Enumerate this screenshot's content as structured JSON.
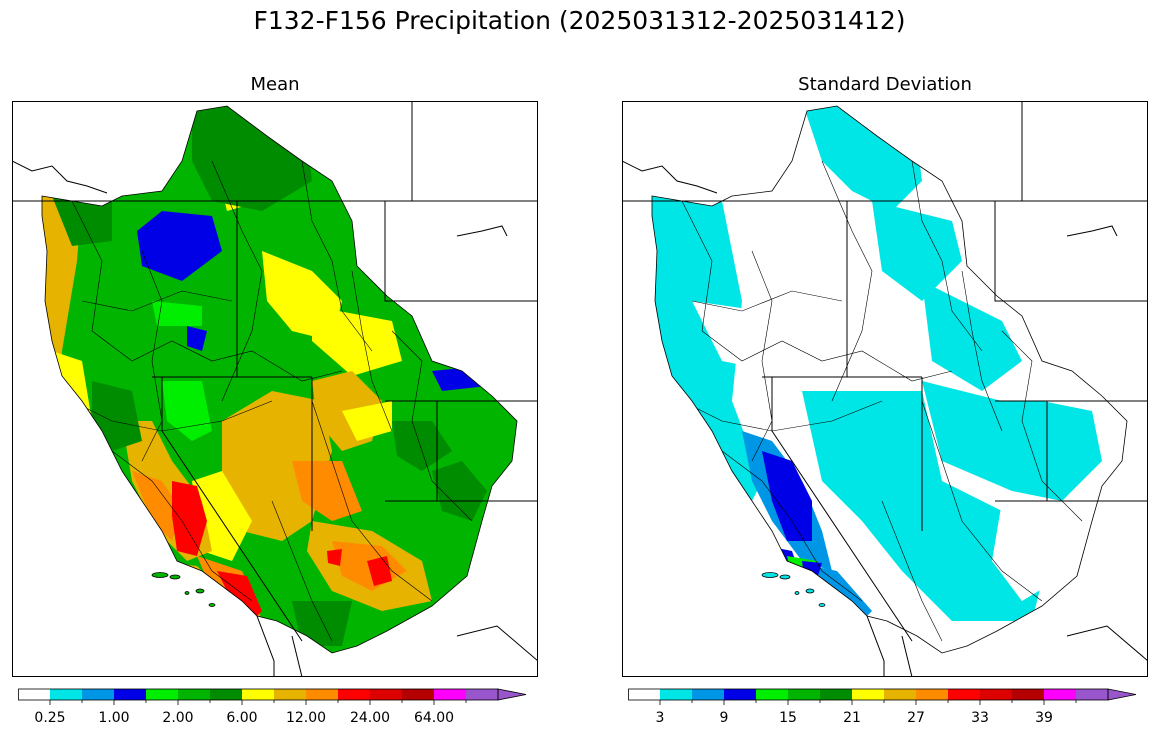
{
  "figure": {
    "title": "F132-F156 Precipitation (2025031312-2025031412)"
  },
  "colors": {
    "scale": [
      "#ffffff",
      "#00e5e5",
      "#0096e6",
      "#0000e6",
      "#00ee00",
      "#00b400",
      "#008c00",
      "#ffff00",
      "#e6b400",
      "#ff8c00",
      "#ff0000",
      "#dc0000",
      "#b40000",
      "#ff00ff",
      "#9955cc"
    ],
    "map_outline": "#000000",
    "ocean": "#ffffff"
  },
  "chart_data": [
    {
      "type": "heatmap",
      "title": "Mean",
      "description_kind": "basin choropleth map",
      "colorbar": {
        "tick_labels": [
          "0.25",
          "1.00",
          "2.00",
          "6.00",
          "12.00",
          "24.00",
          "64.00"
        ],
        "n_colors": 15,
        "extend": "max"
      },
      "regions": [
        {
          "area": "Pacific Northwest coast",
          "class": "yellow/gold"
        },
        {
          "area": "Northern Idaho / western Montana basin",
          "class": "blue"
        },
        {
          "area": "Central Oregon / Idaho",
          "class": "green"
        },
        {
          "area": "Southern Sierra Nevada",
          "class": "red"
        },
        {
          "area": "Southern California coast",
          "class": "red"
        },
        {
          "area": "Great Basin / Utah",
          "class": "yellow/gold"
        },
        {
          "area": "Arizona / New Mexico mountains",
          "class": "orange/red"
        },
        {
          "area": "Colorado Front Range",
          "class": "green"
        },
        {
          "area": "Northeast Wyoming basin",
          "class": "blue"
        }
      ]
    },
    {
      "type": "heatmap",
      "title": "Standard Deviation",
      "description_kind": "basin choropleth map",
      "colorbar": {
        "tick_labels": [
          "3",
          "9",
          "15",
          "21",
          "27",
          "33",
          "39"
        ],
        "n_colors": 15,
        "extend": "max"
      },
      "regions": [
        {
          "area": "Pacific coast and Cascades",
          "class": "cyan"
        },
        {
          "area": "Interior Northwest",
          "class": "white"
        },
        {
          "area": "Sierra Nevada",
          "class": "blue"
        },
        {
          "area": "Southern California coast",
          "class": "green/blue"
        },
        {
          "area": "Arizona / Utah",
          "class": "cyan"
        },
        {
          "area": "Colorado / Wyoming",
          "class": "cyan"
        },
        {
          "area": "New Mexico",
          "class": "white"
        }
      ]
    }
  ]
}
